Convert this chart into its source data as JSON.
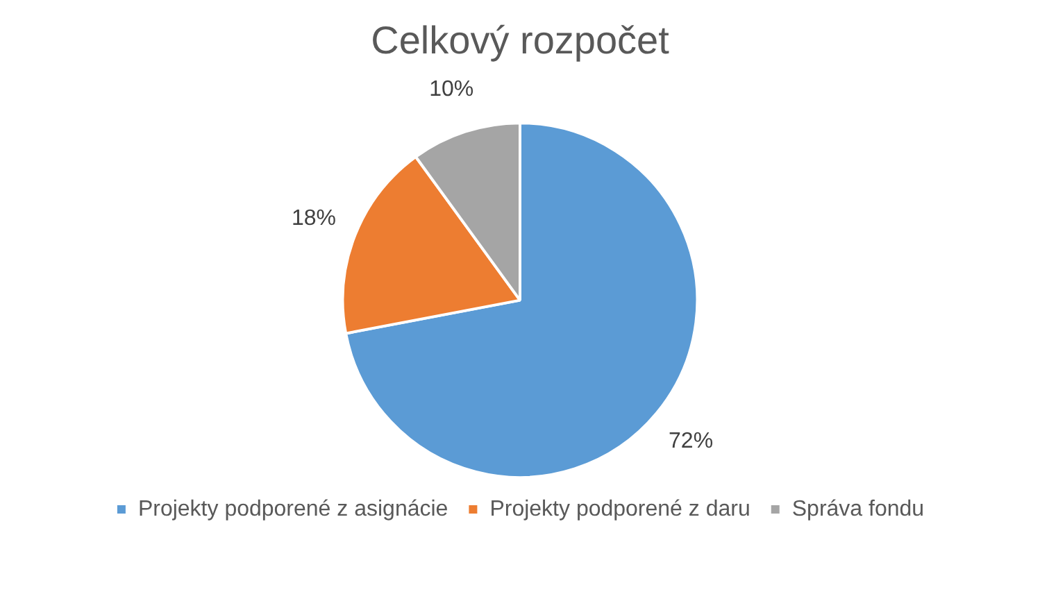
{
  "chart_data": {
    "type": "pie",
    "title": "Celkový rozpočet",
    "categories": [
      "Projekty podporené z asignácie",
      "Projekty podporené z daru",
      "Správa fondu"
    ],
    "values": [
      72,
      18,
      10
    ],
    "colors": [
      "#5b9bd5",
      "#ed7d31",
      "#a5a5a5"
    ],
    "value_labels": [
      "72%",
      "18%",
      "10%"
    ],
    "legend": "bottom"
  }
}
